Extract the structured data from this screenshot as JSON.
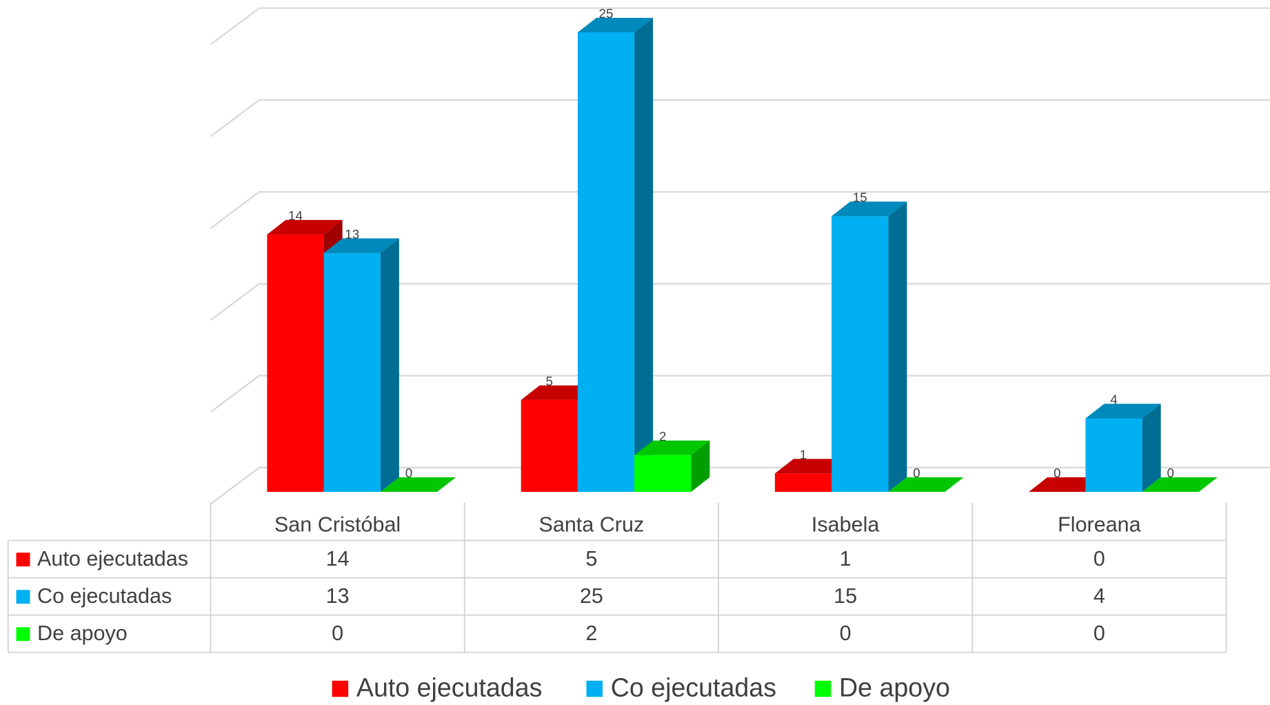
{
  "chart_data": {
    "type": "bar3d",
    "categories": [
      "San Cristóbal",
      "Santa Cruz",
      "Isabela",
      "Floreana"
    ],
    "series": [
      {
        "name": "Auto ejecutadas",
        "color": "#ff0000",
        "values": [
          14,
          5,
          1,
          0
        ]
      },
      {
        "name": "Co ejecutadas",
        "color": "#00b0f0",
        "values": [
          13,
          25,
          15,
          4
        ]
      },
      {
        "name": "De apoyo",
        "color": "#00ff00",
        "values": [
          0,
          2,
          0,
          0
        ]
      }
    ],
    "ylim": [
      0,
      25
    ],
    "yticks": [
      0,
      5,
      10,
      15,
      20,
      25
    ],
    "grid": true,
    "data_table": true,
    "legend": "bottom"
  }
}
